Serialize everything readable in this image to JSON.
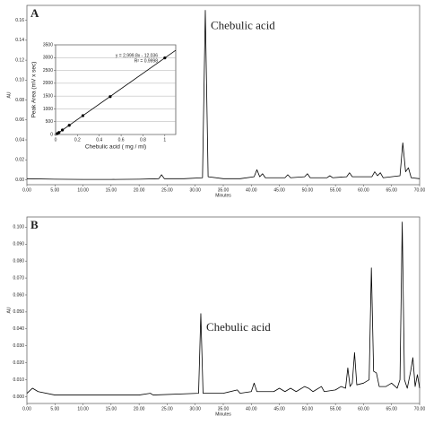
{
  "chart_data": [
    {
      "type": "line",
      "panel_label": "A",
      "annotation": "Chebulic acid",
      "xlabel": "Minutes",
      "ylabel": "AU",
      "color": "#000000",
      "grid": false,
      "x": [
        0,
        5,
        10,
        15,
        20,
        23.5,
        24,
        24.5,
        28,
        31.3,
        31.8,
        32.3,
        35,
        38,
        40.5,
        41,
        41.5,
        42,
        42.5,
        46,
        46.5,
        47,
        49.5,
        50,
        50.5,
        53.5,
        54,
        54.5,
        57,
        57.5,
        58,
        61.5,
        62,
        62.5,
        63,
        63.5,
        66.5,
        67,
        67.5,
        68,
        68.5,
        70
      ],
      "values": [
        0.001,
        0.0005,
        0.0003,
        0.0003,
        0.0005,
        0.001,
        0.005,
        0.001,
        0.001,
        0.002,
        0.17,
        0.003,
        0.001,
        0.001,
        0.003,
        0.01,
        0.003,
        0.006,
        0.002,
        0.002,
        0.005,
        0.002,
        0.003,
        0.006,
        0.002,
        0.002,
        0.004,
        0.002,
        0.003,
        0.007,
        0.003,
        0.003,
        0.008,
        0.004,
        0.007,
        0.002,
        0.004,
        0.037,
        0.008,
        0.012,
        0.002,
        0.001
      ],
      "xlim": [
        0,
        70
      ],
      "xticks": [
        {
          "value": 0,
          "label": "0.00"
        },
        {
          "value": 5,
          "label": "5.00"
        },
        {
          "value": 10,
          "label": "10.00"
        },
        {
          "value": 15,
          "label": "15.00"
        },
        {
          "value": 20,
          "label": "20.00"
        },
        {
          "value": 25,
          "label": "25.00"
        },
        {
          "value": 30,
          "label": "30.00"
        },
        {
          "value": 35,
          "label": "35.00"
        },
        {
          "value": 40,
          "label": "40.00"
        },
        {
          "value": 45,
          "label": "45.00"
        },
        {
          "value": 50,
          "label": "50.00"
        },
        {
          "value": 55,
          "label": "55.00"
        },
        {
          "value": 60,
          "label": "60.00"
        },
        {
          "value": 65,
          "label": "65.00"
        },
        {
          "value": 70,
          "label": "70.00"
        }
      ],
      "ylim": [
        -0.005,
        0.175
      ],
      "yticks": [
        {
          "value": 0,
          "label": "0.00"
        },
        {
          "value": 0.02,
          "label": "0.02"
        },
        {
          "value": 0.04,
          "label": "0.04"
        },
        {
          "value": 0.06,
          "label": "0.06"
        },
        {
          "value": 0.08,
          "label": "0.08"
        },
        {
          "value": 0.1,
          "label": "0.10"
        },
        {
          "value": 0.12,
          "label": "0.12"
        },
        {
          "value": 0.14,
          "label": "0.14"
        },
        {
          "value": 0.16,
          "label": "0.16"
        }
      ]
    },
    {
      "type": "line",
      "panel_label": "B",
      "annotation": "Chebulic acid",
      "xlabel": "Minutes",
      "ylabel": "AU",
      "color": "#000000",
      "grid": false,
      "x": [
        0,
        1,
        2,
        5,
        10,
        15,
        20,
        22,
        22.5,
        30.6,
        31,
        31.4,
        35,
        37.5,
        38,
        40,
        40.5,
        41,
        44,
        45,
        46,
        47,
        48,
        49.5,
        50.2,
        51,
        52.5,
        53,
        55,
        56,
        56.8,
        57.2,
        57.6,
        58,
        58.4,
        58.8,
        60,
        61,
        61.4,
        61.8,
        62.3,
        62.8,
        64,
        65,
        66,
        66.5,
        66.9,
        67.3,
        67.8,
        68.4,
        68.8,
        69.2,
        69.6,
        70
      ],
      "values": [
        0.002,
        0.005,
        0.003,
        0.001,
        0.001,
        0.001,
        0.001,
        0.002,
        0.001,
        0.002,
        0.049,
        0.002,
        0.002,
        0.004,
        0.002,
        0.003,
        0.008,
        0.003,
        0.003,
        0.005,
        0.003,
        0.005,
        0.003,
        0.006,
        0.005,
        0.003,
        0.006,
        0.003,
        0.004,
        0.006,
        0.005,
        0.017,
        0.006,
        0.008,
        0.026,
        0.007,
        0.008,
        0.01,
        0.076,
        0.015,
        0.014,
        0.006,
        0.006,
        0.008,
        0.005,
        0.01,
        0.103,
        0.01,
        0.005,
        0.015,
        0.023,
        0.006,
        0.013,
        0.005
      ],
      "xlim": [
        0,
        70
      ],
      "xticks": [
        {
          "value": 0,
          "label": "0.00"
        },
        {
          "value": 5,
          "label": "5.00"
        },
        {
          "value": 10,
          "label": "10.00"
        },
        {
          "value": 15,
          "label": "15.00"
        },
        {
          "value": 20,
          "label": "20.00"
        },
        {
          "value": 25,
          "label": "25.00"
        },
        {
          "value": 30,
          "label": "30.00"
        },
        {
          "value": 35,
          "label": "35.00"
        },
        {
          "value": 40,
          "label": "40.00"
        },
        {
          "value": 45,
          "label": "45.00"
        },
        {
          "value": 50,
          "label": "50.00"
        },
        {
          "value": 55,
          "label": "55.00"
        },
        {
          "value": 60,
          "label": "60.00"
        },
        {
          "value": 65,
          "label": "65.00"
        },
        {
          "value": 70,
          "label": "70.00"
        }
      ],
      "ylim": [
        -0.004,
        0.106
      ],
      "yticks": [
        {
          "value": 0,
          "label": "0.000"
        },
        {
          "value": 0.01,
          "label": "0.010"
        },
        {
          "value": 0.02,
          "label": "0.020"
        },
        {
          "value": 0.03,
          "label": "0.030"
        },
        {
          "value": 0.04,
          "label": "0.040"
        },
        {
          "value": 0.05,
          "label": "0.050"
        },
        {
          "value": 0.06,
          "label": "0.060"
        },
        {
          "value": 0.07,
          "label": "0.070"
        },
        {
          "value": 0.08,
          "label": "0.080"
        },
        {
          "value": 0.09,
          "label": "0.090"
        },
        {
          "value": 0.1,
          "label": "0.100"
        }
      ]
    },
    {
      "type": "scatter",
      "xlabel": "Chebulic acid ( mg / ml)",
      "ylabel": "Peak Area (mV x sec)",
      "color": "#000000",
      "grid": true,
      "trendline": true,
      "annotations": [
        "y = 2,999.8x - 12.036",
        "R² = 0.9998"
      ],
      "x": [
        0.0156,
        0.03125,
        0.0625,
        0.125,
        0.25,
        0.5,
        1
      ],
      "values": [
        35,
        80,
        175,
        360,
        735,
        1480,
        2990
      ],
      "xlim": [
        0,
        1.1
      ],
      "xticks": [
        0,
        0.2,
        0.4,
        0.6,
        0.8,
        1
      ],
      "ylim": [
        0,
        3500
      ],
      "yticks": [
        0,
        500,
        1000,
        1500,
        2000,
        2500,
        3000,
        3500
      ]
    }
  ]
}
